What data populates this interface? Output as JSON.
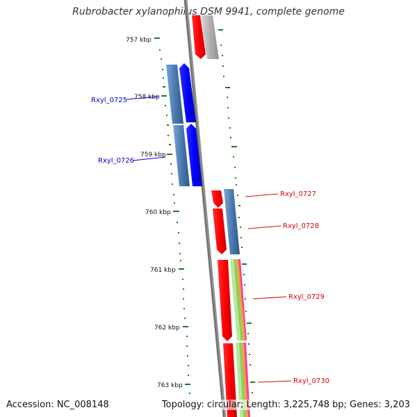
{
  "title": "Rubrobacter xylanophilus DSM 9941, complete genome",
  "footer": {
    "accession": "Accession: NC_008148",
    "summary": "Topology: circular; Length: 3,225,748 bp; Genes: 3,203"
  },
  "ticks": [
    {
      "label": "757 kbp"
    },
    {
      "label": "758 kbp"
    },
    {
      "label": "759 kbp"
    },
    {
      "label": "760 kbp"
    },
    {
      "label": "761 kbp"
    },
    {
      "label": "762 kbp"
    },
    {
      "label": "763 kbp"
    }
  ],
  "gene_labels": [
    {
      "text": "Rxyl_0725",
      "color": "#0000cc"
    },
    {
      "text": "Rxyl_0726",
      "color": "#0000cc"
    },
    {
      "text": "Rxyl_0727",
      "color": "#dd0000"
    },
    {
      "text": "Rxyl_0728",
      "color": "#dd0000"
    },
    {
      "text": "Rxyl_0729",
      "color": "#dd0000"
    },
    {
      "text": "Rxyl_0730",
      "color": "#dd0000"
    }
  ],
  "colors": {
    "backbone": "#808080",
    "forward_cds": "#ff0000",
    "reverse_cds": "#0000ff",
    "feature_steel": "#4a7ab0",
    "feature_grey": "#b0b0b0",
    "gc_dots": "#1a7a1a"
  }
}
